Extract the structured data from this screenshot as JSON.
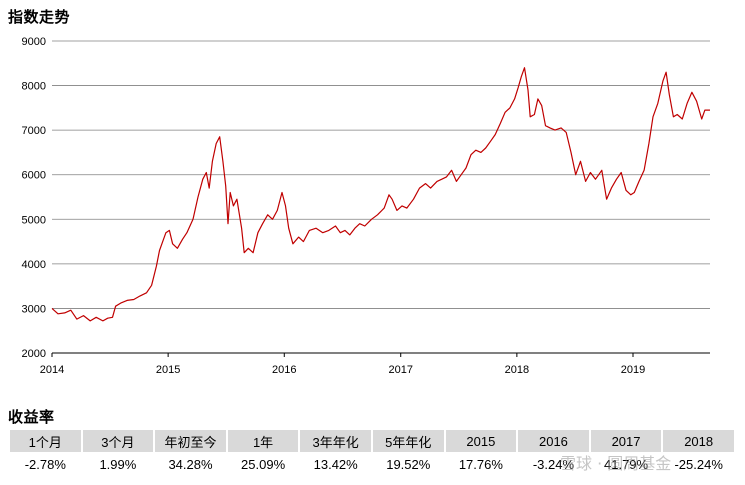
{
  "chart_title": "指数走势",
  "returns_title": "收益率",
  "watermark": "雪球 · 圆周基金",
  "chart_data": {
    "type": "line",
    "title": "指数走势",
    "xlabel": "",
    "ylabel": "",
    "ylim": [
      2000,
      9000
    ],
    "xlim": [
      "2014-01-01",
      "2019-08-31"
    ],
    "yticks": [
      2000,
      3000,
      4000,
      5000,
      6000,
      7000,
      8000,
      9000
    ],
    "xticks": [
      "2014",
      "2015",
      "2016",
      "2017",
      "2018",
      "2019"
    ],
    "grid": "horizontal",
    "color": "#c00000",
    "series": [
      {
        "name": "",
        "points": [
          [
            "2014-01-01",
            3000
          ],
          [
            "2014-01-20",
            2880
          ],
          [
            "2014-02-10",
            2900
          ],
          [
            "2014-03-01",
            2960
          ],
          [
            "2014-03-20",
            2760
          ],
          [
            "2014-04-10",
            2840
          ],
          [
            "2014-05-01",
            2720
          ],
          [
            "2014-05-20",
            2800
          ],
          [
            "2014-06-10",
            2720
          ],
          [
            "2014-06-25",
            2780
          ],
          [
            "2014-07-10",
            2800
          ],
          [
            "2014-07-20",
            3050
          ],
          [
            "2014-08-05",
            3120
          ],
          [
            "2014-08-25",
            3180
          ],
          [
            "2014-09-15",
            3200
          ],
          [
            "2014-10-05",
            3280
          ],
          [
            "2014-10-25",
            3350
          ],
          [
            "2014-11-10",
            3520
          ],
          [
            "2014-11-25",
            3950
          ],
          [
            "2014-12-05",
            4300
          ],
          [
            "2014-12-15",
            4500
          ],
          [
            "2014-12-25",
            4700
          ],
          [
            "2015-01-05",
            4750
          ],
          [
            "2015-01-15",
            4450
          ],
          [
            "2015-01-30",
            4350
          ],
          [
            "2015-02-15",
            4550
          ],
          [
            "2015-03-01",
            4700
          ],
          [
            "2015-03-20",
            5000
          ],
          [
            "2015-04-05",
            5500
          ],
          [
            "2015-04-20",
            5900
          ],
          [
            "2015-05-01",
            6050
          ],
          [
            "2015-05-10",
            5700
          ],
          [
            "2015-05-20",
            6300
          ],
          [
            "2015-06-01",
            6700
          ],
          [
            "2015-06-12",
            6850
          ],
          [
            "2015-06-22",
            6300
          ],
          [
            "2015-07-01",
            5750
          ],
          [
            "2015-07-08",
            4900
          ],
          [
            "2015-07-15",
            5600
          ],
          [
            "2015-07-25",
            5300
          ],
          [
            "2015-08-05",
            5450
          ],
          [
            "2015-08-20",
            4800
          ],
          [
            "2015-08-28",
            4250
          ],
          [
            "2015-09-10",
            4350
          ],
          [
            "2015-09-25",
            4250
          ],
          [
            "2015-10-10",
            4700
          ],
          [
            "2015-10-25",
            4900
          ],
          [
            "2015-11-10",
            5100
          ],
          [
            "2015-11-25",
            5000
          ],
          [
            "2015-12-10",
            5200
          ],
          [
            "2015-12-25",
            5600
          ],
          [
            "2016-01-05",
            5300
          ],
          [
            "2016-01-15",
            4800
          ],
          [
            "2016-01-28",
            4450
          ],
          [
            "2016-02-15",
            4600
          ],
          [
            "2016-03-01",
            4500
          ],
          [
            "2016-03-20",
            4750
          ],
          [
            "2016-04-10",
            4800
          ],
          [
            "2016-05-01",
            4700
          ],
          [
            "2016-05-20",
            4750
          ],
          [
            "2016-06-10",
            4850
          ],
          [
            "2016-06-25",
            4700
          ],
          [
            "2016-07-10",
            4750
          ],
          [
            "2016-07-25",
            4650
          ],
          [
            "2016-08-10",
            4800
          ],
          [
            "2016-08-25",
            4900
          ],
          [
            "2016-09-10",
            4850
          ],
          [
            "2016-10-01",
            5000
          ],
          [
            "2016-10-20",
            5100
          ],
          [
            "2016-11-10",
            5250
          ],
          [
            "2016-11-25",
            5550
          ],
          [
            "2016-12-05",
            5450
          ],
          [
            "2016-12-20",
            5200
          ],
          [
            "2017-01-05",
            5300
          ],
          [
            "2017-01-20",
            5250
          ],
          [
            "2017-02-10",
            5450
          ],
          [
            "2017-03-01",
            5700
          ],
          [
            "2017-03-20",
            5800
          ],
          [
            "2017-04-05",
            5700
          ],
          [
            "2017-04-25",
            5850
          ],
          [
            "2017-05-10",
            5900
          ],
          [
            "2017-05-25",
            5950
          ],
          [
            "2017-06-10",
            6100
          ],
          [
            "2017-06-25",
            5850
          ],
          [
            "2017-07-10",
            6000
          ],
          [
            "2017-07-25",
            6150
          ],
          [
            "2017-08-10",
            6450
          ],
          [
            "2017-08-25",
            6550
          ],
          [
            "2017-09-10",
            6500
          ],
          [
            "2017-09-25",
            6600
          ],
          [
            "2017-10-10",
            6750
          ],
          [
            "2017-10-25",
            6900
          ],
          [
            "2017-11-10",
            7150
          ],
          [
            "2017-11-25",
            7400
          ],
          [
            "2017-12-10",
            7500
          ],
          [
            "2017-12-25",
            7700
          ],
          [
            "2018-01-05",
            7950
          ],
          [
            "2018-01-15",
            8200
          ],
          [
            "2018-01-25",
            8400
          ],
          [
            "2018-02-05",
            7900
          ],
          [
            "2018-02-12",
            7300
          ],
          [
            "2018-02-25",
            7350
          ],
          [
            "2018-03-08",
            7700
          ],
          [
            "2018-03-20",
            7550
          ],
          [
            "2018-04-01",
            7100
          ],
          [
            "2018-04-15",
            7050
          ],
          [
            "2018-05-01",
            7000
          ],
          [
            "2018-05-20",
            7050
          ],
          [
            "2018-06-05",
            6950
          ],
          [
            "2018-06-20",
            6500
          ],
          [
            "2018-07-05",
            6000
          ],
          [
            "2018-07-20",
            6300
          ],
          [
            "2018-08-05",
            5850
          ],
          [
            "2018-08-20",
            6050
          ],
          [
            "2018-09-05",
            5900
          ],
          [
            "2018-09-25",
            6100
          ],
          [
            "2018-10-10",
            5450
          ],
          [
            "2018-10-25",
            5700
          ],
          [
            "2018-11-10",
            5900
          ],
          [
            "2018-11-25",
            6050
          ],
          [
            "2018-12-10",
            5650
          ],
          [
            "2018-12-25",
            5550
          ],
          [
            "2019-01-05",
            5600
          ],
          [
            "2019-01-20",
            5850
          ],
          [
            "2019-02-05",
            6100
          ],
          [
            "2019-02-20",
            6700
          ],
          [
            "2019-03-05",
            7300
          ],
          [
            "2019-03-20",
            7600
          ],
          [
            "2019-04-05",
            8100
          ],
          [
            "2019-04-15",
            8300
          ],
          [
            "2019-04-25",
            7800
          ],
          [
            "2019-05-08",
            7300
          ],
          [
            "2019-05-20",
            7350
          ],
          [
            "2019-06-05",
            7250
          ],
          [
            "2019-06-20",
            7600
          ],
          [
            "2019-07-05",
            7850
          ],
          [
            "2019-07-20",
            7650
          ],
          [
            "2019-08-05",
            7250
          ],
          [
            "2019-08-15",
            7450
          ],
          [
            "2019-08-31",
            7450
          ]
        ]
      }
    ]
  },
  "returns_table": {
    "headers": [
      "1个月",
      "3个月",
      "年初至今",
      "1年",
      "3年年化",
      "5年年化",
      "2015",
      "2016",
      "2017",
      "2018"
    ],
    "values": [
      "-2.78%",
      "1.99%",
      "34.28%",
      "25.09%",
      "13.42%",
      "19.52%",
      "17.76%",
      "-3.24%",
      "41.79%",
      "-25.24%"
    ]
  }
}
